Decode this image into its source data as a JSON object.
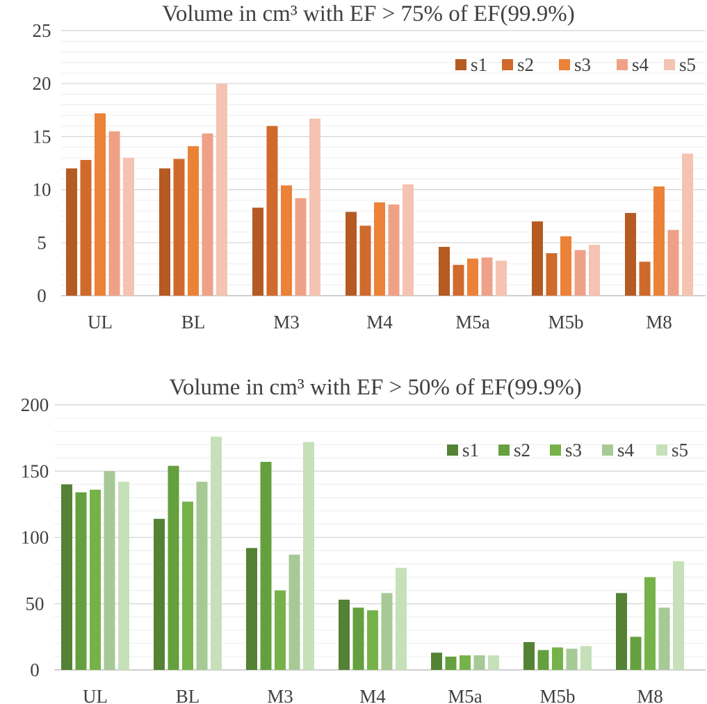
{
  "chart_data": [
    {
      "type": "bar",
      "title": "Volume in cm³ with EF > 75% of EF(99.9%)",
      "categories": [
        "UL",
        "BL",
        "M3",
        "M4",
        "M5a",
        "M5b",
        "M8"
      ],
      "ylim": [
        0,
        25
      ],
      "yticks": [
        0,
        5,
        10,
        15,
        20,
        25
      ],
      "minor_grid": true,
      "legend_position": "top-right",
      "series": [
        {
          "name": "s1",
          "color": "#b55a22",
          "values": [
            12.0,
            12.0,
            8.3,
            7.9,
            4.6,
            7.0,
            7.8
          ]
        },
        {
          "name": "s2",
          "color": "#d0692c",
          "values": [
            12.8,
            12.9,
            16.0,
            6.6,
            2.9,
            4.0,
            3.2
          ]
        },
        {
          "name": "s3",
          "color": "#ec8237",
          "values": [
            17.2,
            14.1,
            10.4,
            8.8,
            3.5,
            5.6,
            10.3
          ]
        },
        {
          "name": "s4",
          "color": "#efa187",
          "values": [
            15.5,
            15.3,
            9.2,
            8.6,
            3.6,
            4.3,
            6.2
          ]
        },
        {
          "name": "s5",
          "color": "#f5c3b1",
          "values": [
            13.0,
            20.0,
            16.7,
            10.5,
            3.3,
            4.8,
            13.4
          ]
        }
      ]
    },
    {
      "type": "bar",
      "title": "Volume in cm³ with EF > 50% of EF(99.9%)",
      "categories": [
        "UL",
        "BL",
        "M3",
        "M4",
        "M5a",
        "M5b",
        "M8"
      ],
      "ylim": [
        0,
        200
      ],
      "yticks": [
        0,
        50,
        100,
        150,
        200
      ],
      "minor_grid": true,
      "legend_position": "top-right",
      "series": [
        {
          "name": "s1",
          "color": "#548235",
          "values": [
            140,
            114,
            92,
            53,
            13,
            21,
            58
          ]
        },
        {
          "name": "s2",
          "color": "#64a03e",
          "values": [
            134,
            154,
            157,
            47,
            10,
            15,
            25
          ]
        },
        {
          "name": "s3",
          "color": "#76b24a",
          "values": [
            136,
            127,
            60,
            45,
            11,
            17,
            70
          ]
        },
        {
          "name": "s4",
          "color": "#a6c996",
          "values": [
            150,
            142,
            87,
            58,
            11,
            16,
            47
          ]
        },
        {
          "name": "s5",
          "color": "#c6e0b9",
          "values": [
            142,
            176,
            172,
            77,
            11,
            18,
            82
          ]
        }
      ]
    }
  ]
}
